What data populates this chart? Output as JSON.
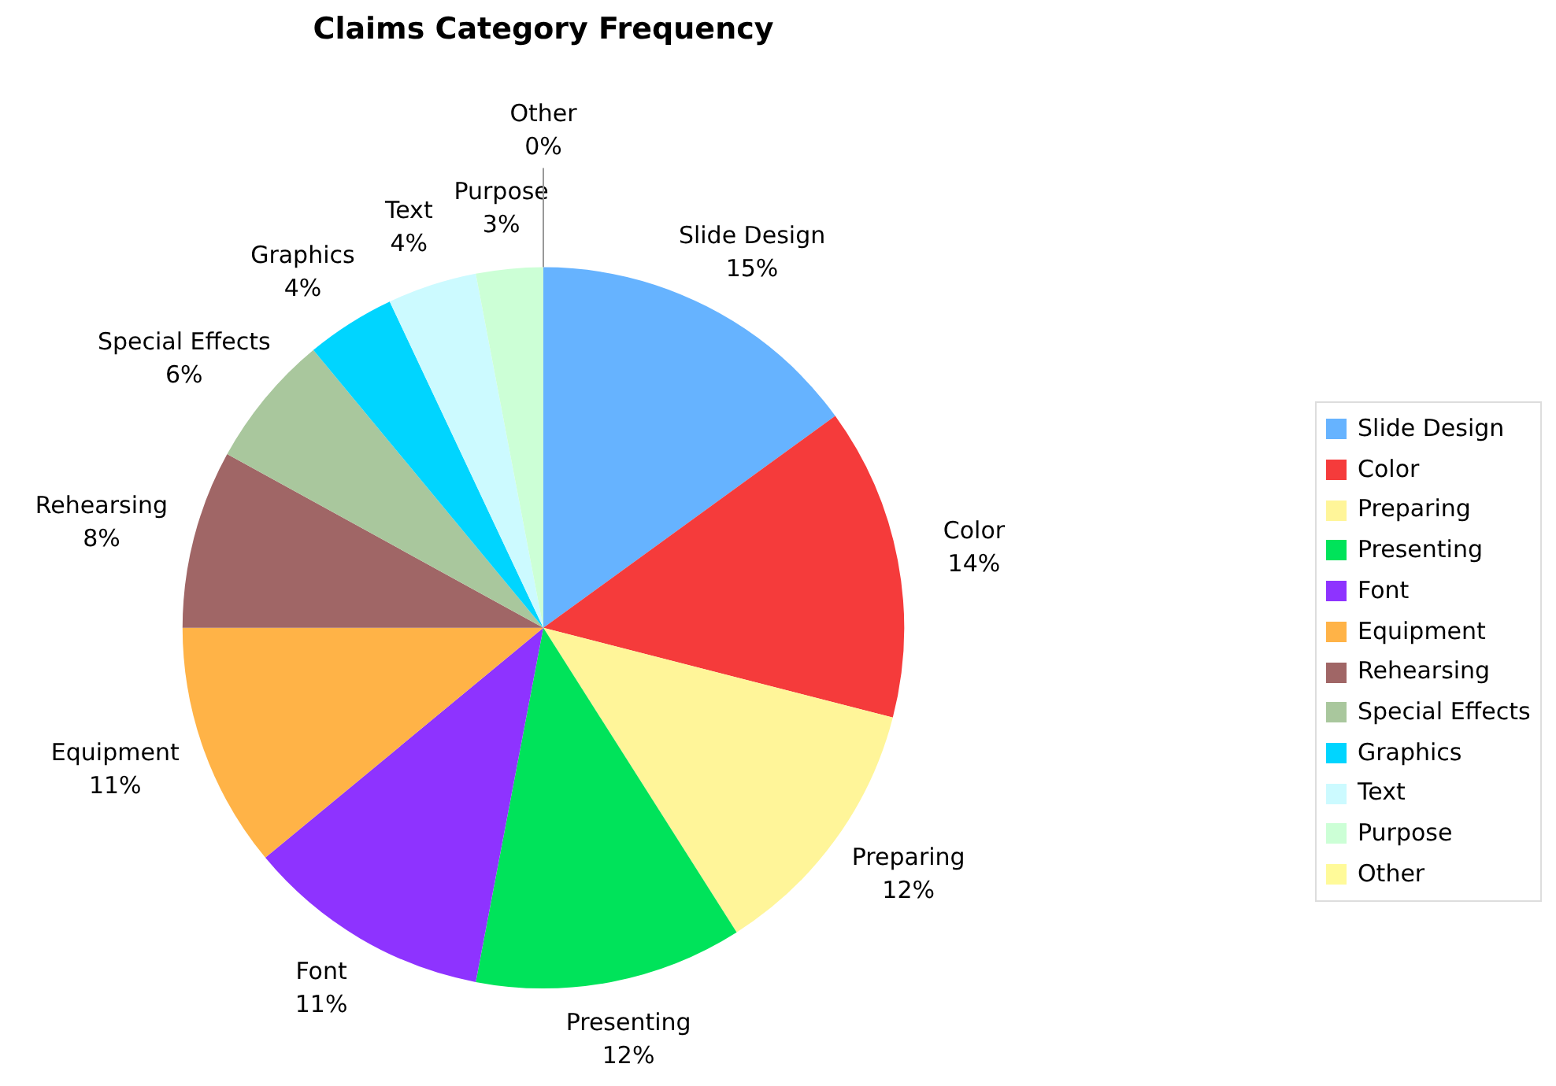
{
  "chart_data": {
    "type": "pie",
    "title": "Claims Category Frequency",
    "categories": [
      "Slide Design",
      "Color",
      "Preparing",
      "Presenting",
      "Font",
      "Equipment",
      "Rehearsing",
      "Special Effects",
      "Graphics",
      "Text",
      "Purpose",
      "Other"
    ],
    "values": [
      15,
      14,
      12,
      12,
      11,
      11,
      8,
      6,
      4,
      4,
      3,
      0
    ],
    "value_labels": [
      "15%",
      "14%",
      "12%",
      "12%",
      "11%",
      "11%",
      "8%",
      "6%",
      "4%",
      "4%",
      "3%",
      "0%"
    ],
    "colors": [
      "#66b3ff",
      "#f53b3b",
      "#fff599",
      "#00e35a",
      "#8e33ff",
      "#ffb347",
      "#a06666",
      "#a9c79d",
      "#00d5ff",
      "#ccfaff",
      "#ccffd6",
      "#fffa99"
    ],
    "legend": "right"
  }
}
